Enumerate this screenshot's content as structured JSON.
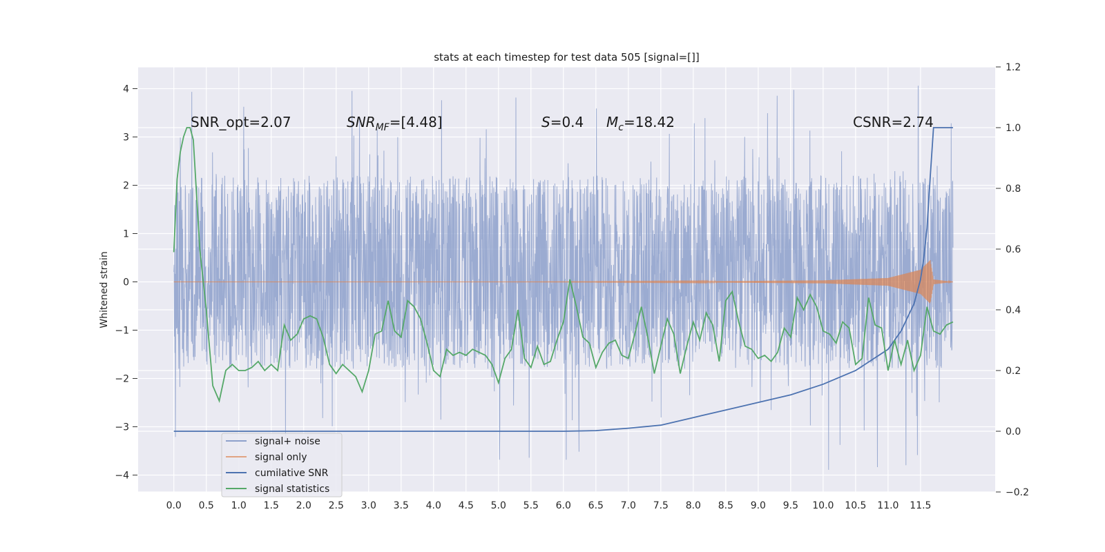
{
  "chart_data": {
    "type": "line",
    "title": "stats at each timestep for test data 505 [signal=[]]",
    "ylabel_left": "Whitened strain",
    "ylabel_right": "",
    "xlabel": "",
    "x_range": [
      -0.55,
      12.65
    ],
    "ylim_left": [
      -4.35,
      4.45
    ],
    "ylim_right": [
      -0.2,
      1.2
    ],
    "x_ticks": [
      "0.0",
      "0.5",
      "1.0",
      "1.5",
      "2.0",
      "2.5",
      "3.0",
      "3.5",
      "4.0",
      "4.5",
      "5.0",
      "5.5",
      "6.0",
      "6.5",
      "7.0",
      "7.5",
      "8.0",
      "8.5",
      "9.0",
      "9.5",
      "10.0",
      "10.5",
      "11.0",
      "11.5"
    ],
    "y_ticks_left": [
      "4",
      "3",
      "2",
      "1",
      "0",
      "−1",
      "−2",
      "−3",
      "−4"
    ],
    "y_ticks_right": [
      "1.2",
      "1.0",
      "0.8",
      "0.6",
      "0.4",
      "0.2",
      "0.0",
      "−0.2"
    ],
    "annotations": {
      "snr_opt": "SNR_opt=2.07",
      "snr_mf_main": "SNR",
      "snr_mf_sub": "MF",
      "snr_mf_value": "=[4.48]",
      "s_name": "S",
      "s_value": "=0.4",
      "mc_main": "M",
      "mc_sub": "c",
      "mc_value": "=18.42",
      "csnr": "CSNR=2.74"
    },
    "series": [
      {
        "name": "signal+ noise",
        "axis": "left",
        "color": "#8da0cb",
        "envelope": {
          "x_range": [
            0.0,
            12.0
          ],
          "typical_range": [
            -1.8,
            2.2
          ],
          "min": -3.95,
          "max": 4.1
        }
      },
      {
        "name": "signal only",
        "axis": "left",
        "color": "#dd8452",
        "envelope": {
          "x": [
            0.0,
            5.0,
            8.0,
            10.0,
            11.0,
            11.5,
            11.65,
            11.7,
            12.0
          ],
          "amplitude": [
            0.0,
            0.0,
            0.01,
            0.03,
            0.08,
            0.25,
            0.45,
            0.05,
            0.0
          ]
        }
      },
      {
        "name": "cumilative SNR",
        "axis": "right",
        "color": "#4c72b0",
        "x": [
          0.0,
          6.0,
          6.5,
          7.0,
          7.5,
          8.0,
          8.5,
          9.0,
          9.5,
          10.0,
          10.5,
          11.0,
          11.2,
          11.4,
          11.5,
          11.55,
          11.6,
          11.65,
          11.7,
          12.0
        ],
        "y": [
          0.0,
          0.0,
          0.002,
          0.01,
          0.02,
          0.045,
          0.07,
          0.095,
          0.12,
          0.155,
          0.2,
          0.27,
          0.33,
          0.42,
          0.5,
          0.57,
          0.67,
          0.84,
          1.0,
          1.0
        ]
      },
      {
        "name": "signal statistics",
        "axis": "right",
        "color": "#55a868",
        "x": [
          0.0,
          0.05,
          0.1,
          0.15,
          0.2,
          0.25,
          0.3,
          0.35,
          0.4,
          0.5,
          0.6,
          0.7,
          0.8,
          0.9,
          1.0,
          1.1,
          1.2,
          1.3,
          1.4,
          1.5,
          1.6,
          1.7,
          1.8,
          1.9,
          2.0,
          2.1,
          2.2,
          2.3,
          2.4,
          2.5,
          2.6,
          2.7,
          2.8,
          2.9,
          3.0,
          3.1,
          3.2,
          3.3,
          3.4,
          3.5,
          3.6,
          3.7,
          3.8,
          3.9,
          4.0,
          4.1,
          4.2,
          4.3,
          4.4,
          4.5,
          4.6,
          4.7,
          4.8,
          4.9,
          5.0,
          5.1,
          5.2,
          5.3,
          5.4,
          5.5,
          5.6,
          5.7,
          5.8,
          5.9,
          6.0,
          6.1,
          6.2,
          6.3,
          6.4,
          6.5,
          6.6,
          6.7,
          6.8,
          6.9,
          7.0,
          7.1,
          7.2,
          7.3,
          7.4,
          7.5,
          7.6,
          7.7,
          7.8,
          7.9,
          8.0,
          8.1,
          8.2,
          8.3,
          8.4,
          8.5,
          8.6,
          8.7,
          8.8,
          8.9,
          9.0,
          9.1,
          9.2,
          9.3,
          9.4,
          9.5,
          9.6,
          9.7,
          9.8,
          9.9,
          10.0,
          10.1,
          10.2,
          10.3,
          10.4,
          10.5,
          10.6,
          10.7,
          10.8,
          10.9,
          11.0,
          11.1,
          11.2,
          11.3,
          11.4,
          11.5,
          11.6,
          11.7,
          11.8,
          11.9,
          12.0
        ],
        "y": [
          0.59,
          0.83,
          0.92,
          0.97,
          1.0,
          1.0,
          0.96,
          0.78,
          0.6,
          0.4,
          0.15,
          0.1,
          0.2,
          0.22,
          0.2,
          0.2,
          0.21,
          0.23,
          0.2,
          0.22,
          0.2,
          0.35,
          0.3,
          0.32,
          0.37,
          0.38,
          0.37,
          0.31,
          0.22,
          0.19,
          0.22,
          0.2,
          0.18,
          0.13,
          0.2,
          0.32,
          0.33,
          0.43,
          0.33,
          0.31,
          0.43,
          0.41,
          0.37,
          0.29,
          0.2,
          0.18,
          0.27,
          0.25,
          0.26,
          0.25,
          0.27,
          0.26,
          0.25,
          0.22,
          0.16,
          0.24,
          0.27,
          0.4,
          0.24,
          0.21,
          0.28,
          0.22,
          0.23,
          0.3,
          0.36,
          0.5,
          0.41,
          0.31,
          0.29,
          0.21,
          0.26,
          0.29,
          0.3,
          0.25,
          0.24,
          0.32,
          0.41,
          0.31,
          0.19,
          0.28,
          0.37,
          0.32,
          0.19,
          0.28,
          0.36,
          0.3,
          0.39,
          0.35,
          0.23,
          0.43,
          0.46,
          0.36,
          0.28,
          0.27,
          0.24,
          0.25,
          0.23,
          0.26,
          0.34,
          0.31,
          0.44,
          0.4,
          0.45,
          0.41,
          0.33,
          0.32,
          0.29,
          0.36,
          0.34,
          0.22,
          0.24,
          0.44,
          0.35,
          0.34,
          0.2,
          0.3,
          0.22,
          0.3,
          0.2,
          0.25,
          0.41,
          0.33,
          0.32,
          0.35,
          0.36
        ]
      }
    ],
    "legend": {
      "position": "lower-left",
      "entries": [
        "signal+ noise",
        "signal only",
        "cumilative SNR",
        "signal statistics"
      ]
    },
    "grid": true
  }
}
